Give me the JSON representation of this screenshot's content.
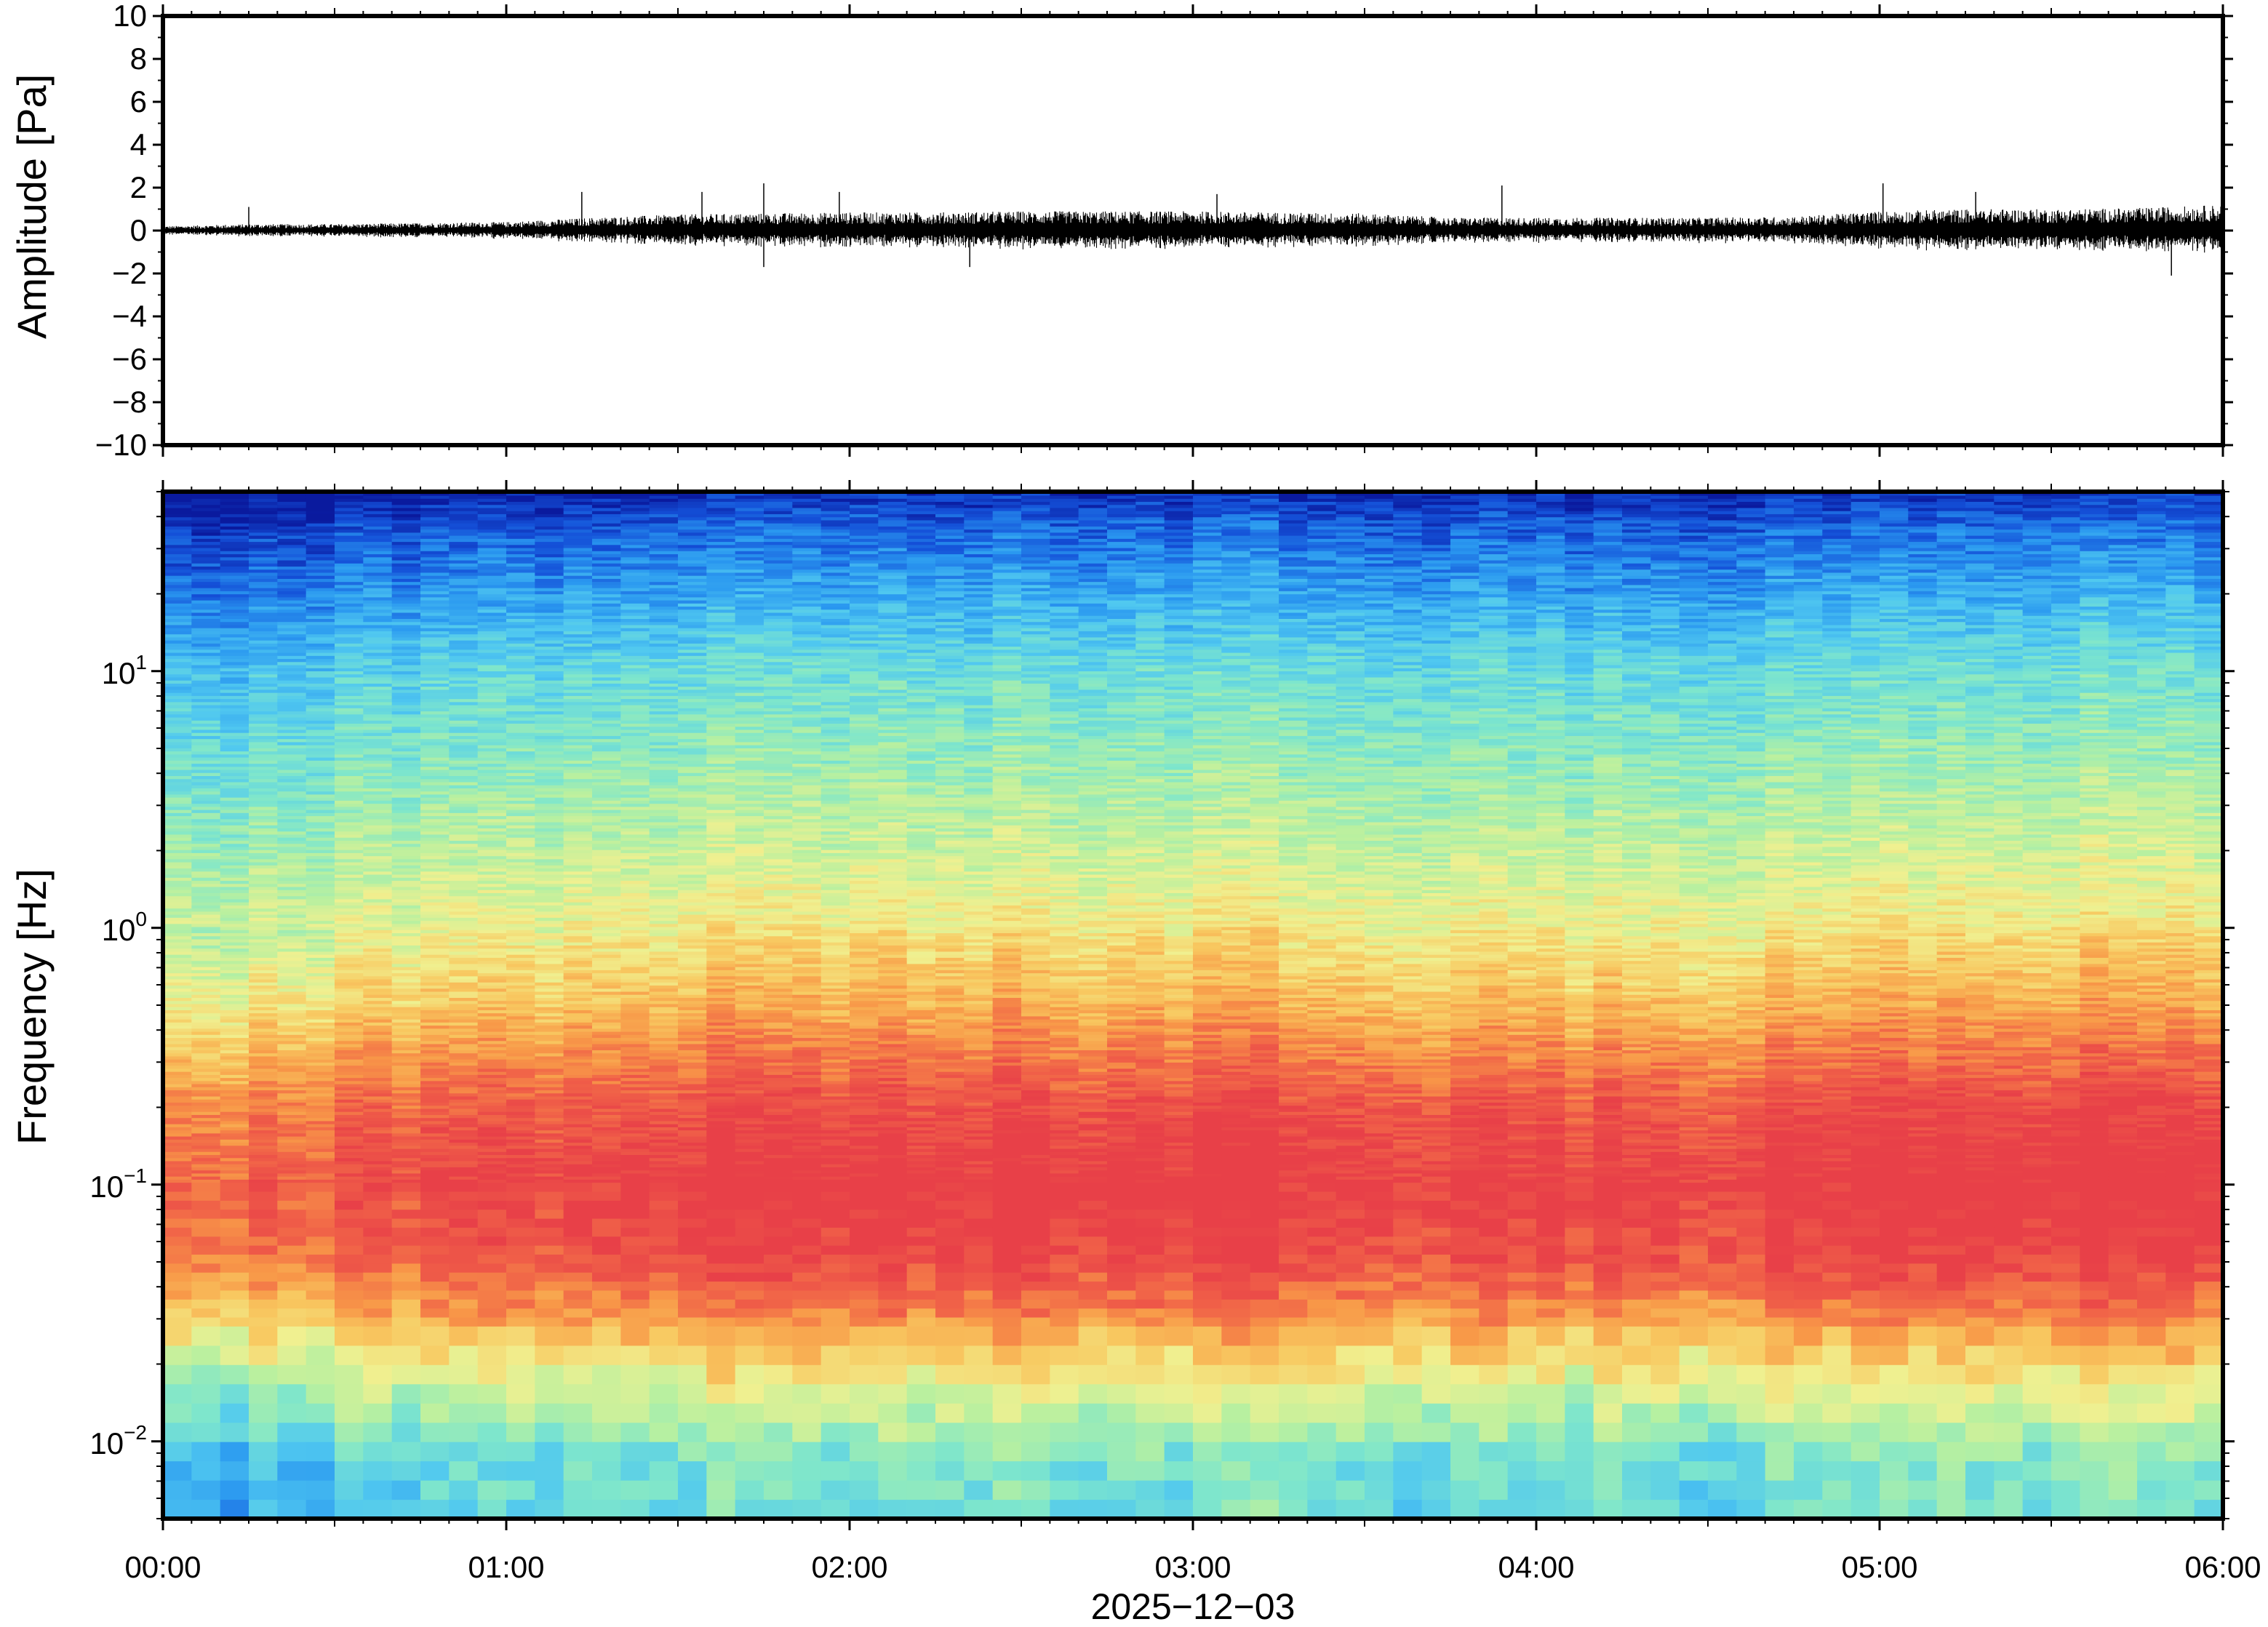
{
  "chart_data": [
    {
      "type": "line",
      "name": "waveform",
      "ylabel": "Amplitude [Pa]",
      "ylim": [
        -10,
        10
      ],
      "yticks": [
        10,
        8,
        6,
        4,
        2,
        0,
        -2,
        -4,
        -6,
        -8,
        -10
      ],
      "ytick_labels": [
        "10",
        "8",
        "6",
        "4",
        "2",
        "0",
        "−2",
        "−4",
        "−6",
        "−8",
        "−10"
      ],
      "xlim": [
        "00:00",
        "06:00"
      ],
      "envelope": {
        "time_hours": [
          0.0,
          0.25,
          0.5,
          0.75,
          1.0,
          1.25,
          1.5,
          1.75,
          2.0,
          2.25,
          2.5,
          2.75,
          3.0,
          3.25,
          3.5,
          3.75,
          4.0,
          4.25,
          4.5,
          4.75,
          5.0,
          5.25,
          5.5,
          5.75,
          6.0
        ],
        "amplitude_pa": [
          0.2,
          0.3,
          0.3,
          0.35,
          0.4,
          0.6,
          0.75,
          0.8,
          0.85,
          0.85,
          0.9,
          0.9,
          0.9,
          0.85,
          0.8,
          0.6,
          0.6,
          0.6,
          0.6,
          0.65,
          0.9,
          1.0,
          1.0,
          1.05,
          1.2
        ]
      },
      "peaks": [
        {
          "time_hours": 0.25,
          "amplitude_pa": 1.1
        },
        {
          "time_hours": 1.22,
          "amplitude_pa": 1.8
        },
        {
          "time_hours": 1.57,
          "amplitude_pa": 1.8
        },
        {
          "time_hours": 1.75,
          "amplitude_pa": 2.2
        },
        {
          "time_hours": 1.75,
          "amplitude_pa": -1.7
        },
        {
          "time_hours": 1.97,
          "amplitude_pa": 1.8
        },
        {
          "time_hours": 2.35,
          "amplitude_pa": -1.7
        },
        {
          "time_hours": 3.07,
          "amplitude_pa": 1.7
        },
        {
          "time_hours": 3.9,
          "amplitude_pa": 2.1
        },
        {
          "time_hours": 5.01,
          "amplitude_pa": 2.2
        },
        {
          "time_hours": 5.28,
          "amplitude_pa": 1.8
        },
        {
          "time_hours": 5.85,
          "amplitude_pa": -2.1
        }
      ]
    },
    {
      "type": "heatmap",
      "name": "spectrogram",
      "ylabel": "Frequency [Hz]",
      "yscale": "log",
      "ylim": [
        0.005,
        50
      ],
      "yticks": [
        {
          "value": 10,
          "base": "10",
          "exp": "1"
        },
        {
          "value": 1,
          "base": "10",
          "exp": "0"
        },
        {
          "value": 0.1,
          "base": "10",
          "exp": "−1"
        },
        {
          "value": 0.01,
          "base": "10",
          "exp": "−2"
        }
      ],
      "xlim": [
        "00:00",
        "06:00"
      ],
      "xticks": [
        "00:00",
        "01:00",
        "02:00",
        "03:00",
        "04:00",
        "05:00",
        "06:00"
      ],
      "xlabel": "2025−12−03",
      "colormap": "jet-like",
      "colormap_stops": [
        "#0a1a9e",
        "#1450d8",
        "#2a98f0",
        "#50c8f0",
        "#7ee6cc",
        "#b8f0a0",
        "#f0f090",
        "#f8c860",
        "#f89848",
        "#f06048",
        "#e84048"
      ],
      "profile": {
        "freq_hz": [
          0.005,
          0.008,
          0.012,
          0.018,
          0.03,
          0.05,
          0.1,
          0.2,
          0.5,
          1,
          2,
          5,
          10,
          20,
          35,
          50
        ],
        "color_level": [
          0.35,
          0.38,
          0.5,
          0.62,
          0.8,
          0.95,
          1.0,
          0.93,
          0.72,
          0.6,
          0.52,
          0.42,
          0.35,
          0.22,
          0.12,
          0.02
        ]
      },
      "time_intensity": {
        "time_hours": [
          0.0,
          0.5,
          1.0,
          1.5,
          2.0,
          2.5,
          3.0,
          3.5,
          4.0,
          4.5,
          5.0,
          5.5,
          6.0
        ],
        "offset": [
          -0.12,
          -0.06,
          -0.03,
          0.02,
          0.04,
          0.04,
          0.04,
          0.02,
          0.0,
          0.0,
          0.03,
          0.05,
          0.06
        ]
      }
    }
  ]
}
